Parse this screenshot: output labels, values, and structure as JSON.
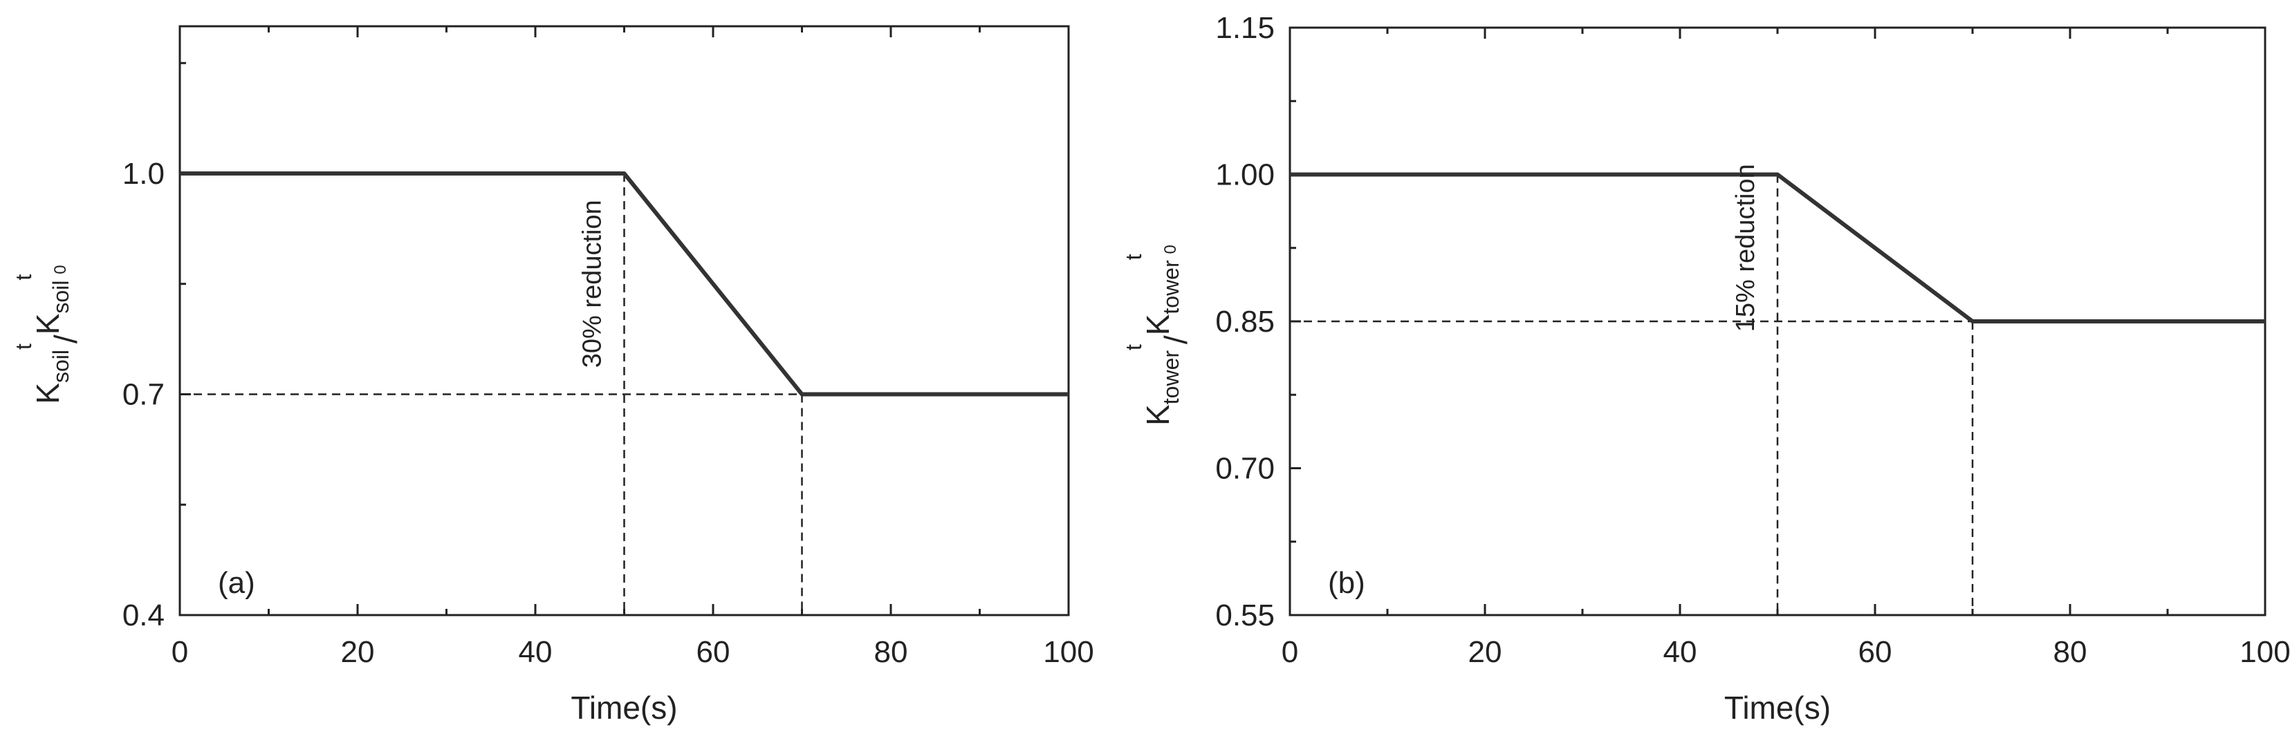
{
  "chart_data": [
    {
      "type": "line",
      "panel_label": "(a)",
      "xlabel": "Time(s)",
      "ylabel": "K_soil^t/K_soil^t0",
      "ylabel_parts": {
        "main1": "K",
        "sub1": "soil",
        "sup1": "t",
        "sep": "/",
        "main2": "K",
        "sub2": "soil",
        "sup2": "t",
        "sup2sub": "0"
      },
      "xlim": [
        0,
        100
      ],
      "ylim": [
        0.4,
        1.2
      ],
      "xticks": [
        0,
        20,
        40,
        60,
        80,
        100
      ],
      "yticks": [
        0.4,
        0.7,
        1.0
      ],
      "ytick_labels": [
        "0.4",
        "0.7",
        "1.0"
      ],
      "series": [
        {
          "x": [
            0,
            50,
            70,
            100
          ],
          "y": [
            1.0,
            1.0,
            0.7,
            0.7
          ]
        }
      ],
      "reference_lines": {
        "horizontal": [
          0.7
        ],
        "vertical_x": [
          50,
          70
        ]
      },
      "annotation": "30% reduction",
      "grid": false
    },
    {
      "type": "line",
      "panel_label": "(b)",
      "xlabel": "Time(s)",
      "ylabel": "K_tower^t/K_tower^t0",
      "ylabel_parts": {
        "main1": "K",
        "sub1": "tower",
        "sup1": "t",
        "sep": "/",
        "main2": "K",
        "sub2": "tower",
        "sup2": "t",
        "sup2sub": "0"
      },
      "xlim": [
        0,
        100
      ],
      "ylim": [
        0.55,
        1.15
      ],
      "xticks": [
        0,
        20,
        40,
        60,
        80,
        100
      ],
      "yticks": [
        0.55,
        0.7,
        0.85,
        1.0,
        1.15
      ],
      "ytick_labels": [
        "0.55",
        "0.70",
        "0.85",
        "1.00",
        "1.15"
      ],
      "series": [
        {
          "x": [
            0,
            50,
            70,
            100
          ],
          "y": [
            1.0,
            1.0,
            0.85,
            0.85
          ]
        }
      ],
      "reference_lines": {
        "horizontal": [
          0.85
        ],
        "vertical_x": [
          50,
          70
        ]
      },
      "annotation": "15% reduction",
      "grid": false
    }
  ]
}
